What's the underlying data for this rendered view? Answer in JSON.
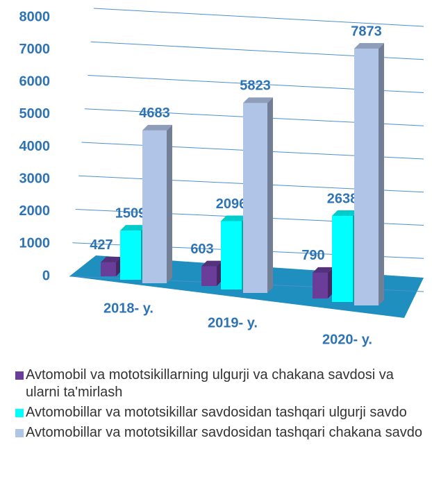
{
  "chart_data": {
    "type": "bar3d",
    "categories": [
      "2018- y.",
      "2019- y.",
      "2020- y."
    ],
    "series": [
      {
        "name": "Avtomobil va mototsikillarning ulgurji va chakana savdosi va ularni ta'mirlash",
        "color": "#6a3d9a",
        "values": [
          427,
          603,
          790
        ]
      },
      {
        "name": "Avtomobillar va mototsikillar savdosidan tashqari ulgurji savdo",
        "color": "#00ffff",
        "values": [
          1509,
          2096,
          2638
        ]
      },
      {
        "name": "Avtomobillar va mototsikillar savdosidan tashqari chakana savdo",
        "color": "#b0c4e8",
        "values": [
          4683,
          5823,
          7873
        ]
      }
    ],
    "ylim": [
      0,
      8000
    ],
    "yticks": [
      0,
      1000,
      2000,
      3000,
      4000,
      5000,
      6000,
      7000,
      8000
    ],
    "grid": true
  }
}
